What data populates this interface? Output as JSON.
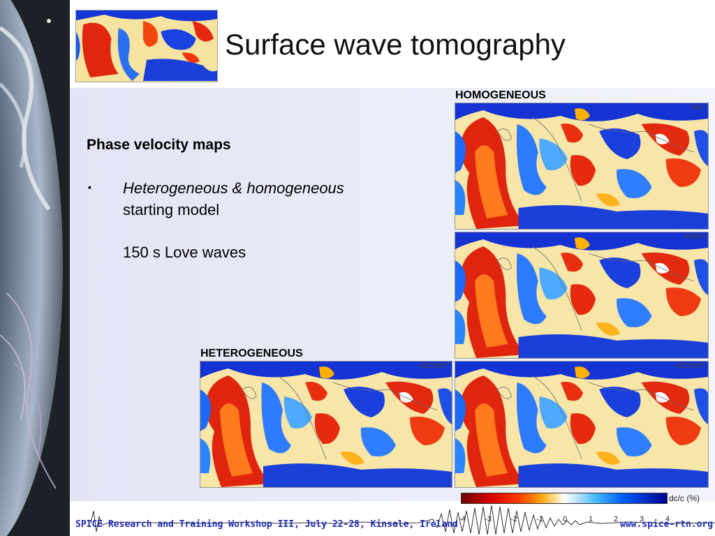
{
  "title": "Surface wave tomography",
  "subhead": "Phase velocity maps",
  "bullet": {
    "marker": "▪",
    "line1": "Heterogeneous & homogeneous",
    "line2": "starting model",
    "line3": "150 s Love waves"
  },
  "labels": {
    "homogeneous": "HOMOGENEOUS",
    "heterogeneous": "HETEROGENEOUS"
  },
  "maps": {
    "ray": "RAY",
    "born": "BORN",
    "adjoint_hom": "ADJOINT",
    "adjoint_het": "ADJOINT"
  },
  "colorbar": {
    "label": "dc/c (%)",
    "ticks": [
      "-4",
      "-3",
      "-2",
      "-1",
      "0",
      "1",
      "2",
      "3",
      "4"
    ]
  },
  "footer": {
    "text": "SPICE Research and Training Workshop III, July 22-28, Kinsale, Ireland",
    "url": "www.spice-rtn.org"
  }
}
